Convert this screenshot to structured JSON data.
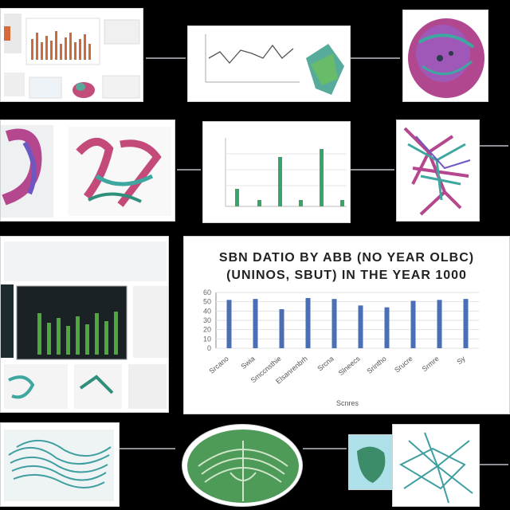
{
  "title_line1": "SBN DATIO BY ABB (NO YEAR OLBC)",
  "title_line2": "(UNINOS, SBUT) IN THE YEAR 1000",
  "panels": [
    {
      "name": "dashboard-top-left"
    },
    {
      "name": "line-chart-top-center"
    },
    {
      "name": "3d-organ-top-right"
    },
    {
      "name": "anatomy-panel-mid-left"
    },
    {
      "name": "bar-chart-mid-center"
    },
    {
      "name": "vascular-panel-mid-right"
    },
    {
      "name": "dashboard-bottom-left"
    },
    {
      "name": "main-bar-chart"
    },
    {
      "name": "lung-panel-bottom-left"
    },
    {
      "name": "lung-panel-bottom-center"
    },
    {
      "name": "lung-panel-bottom-right"
    }
  ],
  "chart_data": {
    "type": "bar",
    "title": "SBN DATIO BY ABB (NO YEAR OLBC) (UNINOS, SBUT) IN THE YEAR 1000",
    "categories": [
      "Srcano",
      "Swia",
      "Smccnsthie",
      "Elsanrenbrh",
      "Srcna",
      "Slneecs",
      "Srintho",
      "Srucre",
      "Srmre",
      "Sy"
    ],
    "values": [
      52,
      53,
      42,
      54,
      53,
      46,
      44,
      51,
      52,
      53
    ],
    "ylim": [
      0,
      60
    ],
    "yticks": [
      0,
      10,
      20,
      30,
      40,
      50,
      60
    ],
    "xlabel": "Scnres",
    "ylabel": "",
    "bar_color": "#4a6fb5"
  }
}
